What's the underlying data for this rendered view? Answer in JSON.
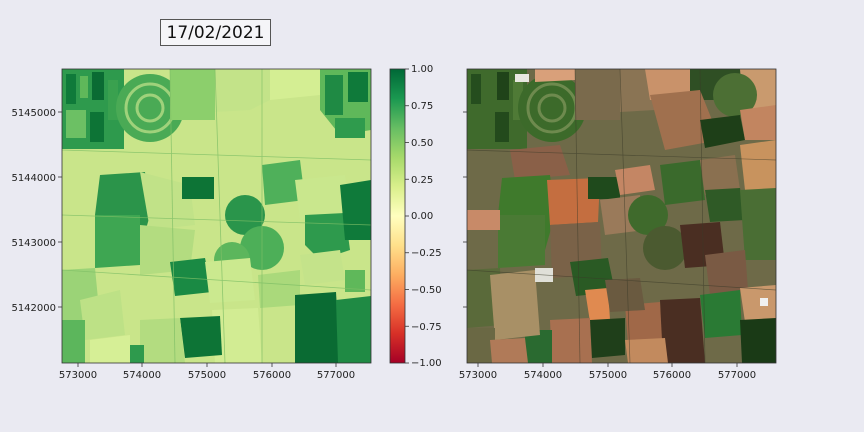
{
  "date_label": "17/02/2021",
  "ndvi_panel": {
    "y_ticks": [
      "5145000",
      "5144000",
      "5143000",
      "5142000"
    ],
    "x_ticks": [
      "573000",
      "574000",
      "575000",
      "576000",
      "577000"
    ]
  },
  "rgb_panel": {
    "x_ticks": [
      "573000",
      "574000",
      "575000",
      "576000",
      "577000"
    ]
  },
  "colorbar": {
    "ticks": [
      "1.00",
      "0.75",
      "0.50",
      "0.25",
      "0.00",
      "−0.25",
      "−0.50",
      "−0.75",
      "−1.00"
    ],
    "colors": [
      "#006837",
      "#1a9850",
      "#66bd63",
      "#a6d96a",
      "#d9ef8b",
      "#ffffbf",
      "#fee08b",
      "#fdae61",
      "#f46d43",
      "#d73027",
      "#a50026"
    ]
  }
}
